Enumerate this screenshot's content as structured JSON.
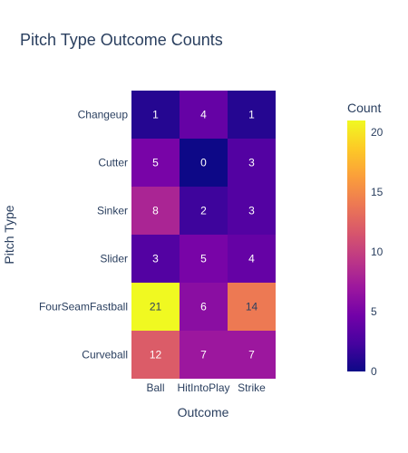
{
  "chart_data": {
    "type": "heatmap",
    "title": "Pitch Type Outcome Counts",
    "xlabel": "Outcome",
    "ylabel": "Pitch Type",
    "x": [
      "Ball",
      "HitIntoPlay",
      "Strike"
    ],
    "y": [
      "Changeup",
      "Cutter",
      "Sinker",
      "Slider",
      "FourSeamFastball",
      "Curveball"
    ],
    "z": [
      [
        1,
        4,
        1
      ],
      [
        5,
        0,
        3
      ],
      [
        8,
        2,
        3
      ],
      [
        3,
        5,
        4
      ],
      [
        21,
        6,
        14
      ],
      [
        12,
        7,
        7
      ]
    ],
    "colorbar": {
      "title": "Count",
      "range": [
        0,
        21
      ],
      "ticks": [
        0,
        5,
        10,
        15,
        20
      ]
    },
    "colorscale": [
      "#0d0887",
      "#46039f",
      "#7201a8",
      "#9c179e",
      "#bd3786",
      "#d8576b",
      "#ed7953",
      "#fb9f3a",
      "#fdca26",
      "#f0f921"
    ]
  }
}
